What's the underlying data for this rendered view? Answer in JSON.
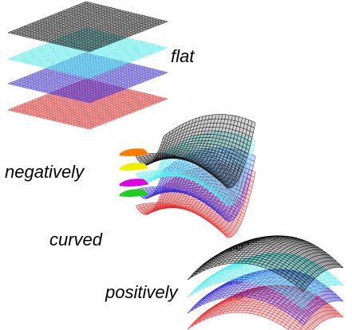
{
  "labels": {
    "flat": "flat",
    "negatively": "negatively",
    "curved": "curved",
    "positively": "positively"
  },
  "colors": {
    "black_layer": "#111111",
    "cyan_layer": "#55f0ee",
    "blue_layer": "#3b2fd8",
    "red_layer": "#e42a2a",
    "orange_tip": "#ff7a00",
    "yellow_tip": "#f2ee00",
    "magenta_tip": "#e000e0",
    "green_tip": "#22cc22"
  },
  "groups": [
    {
      "name": "flat-stack",
      "layers": [
        "black_layer",
        "cyan_layer",
        "blue_layer",
        "red_layer"
      ]
    },
    {
      "name": "negatively-curved-stack",
      "layers": [
        "black_layer",
        "cyan_layer",
        "blue_layer",
        "red_layer"
      ],
      "tips": [
        "orange_tip",
        "yellow_tip",
        "magenta_tip",
        "green_tip"
      ]
    },
    {
      "name": "positively-curved-stack",
      "layers": [
        "black_layer",
        "cyan_layer",
        "blue_layer",
        "red_layer"
      ]
    }
  ]
}
